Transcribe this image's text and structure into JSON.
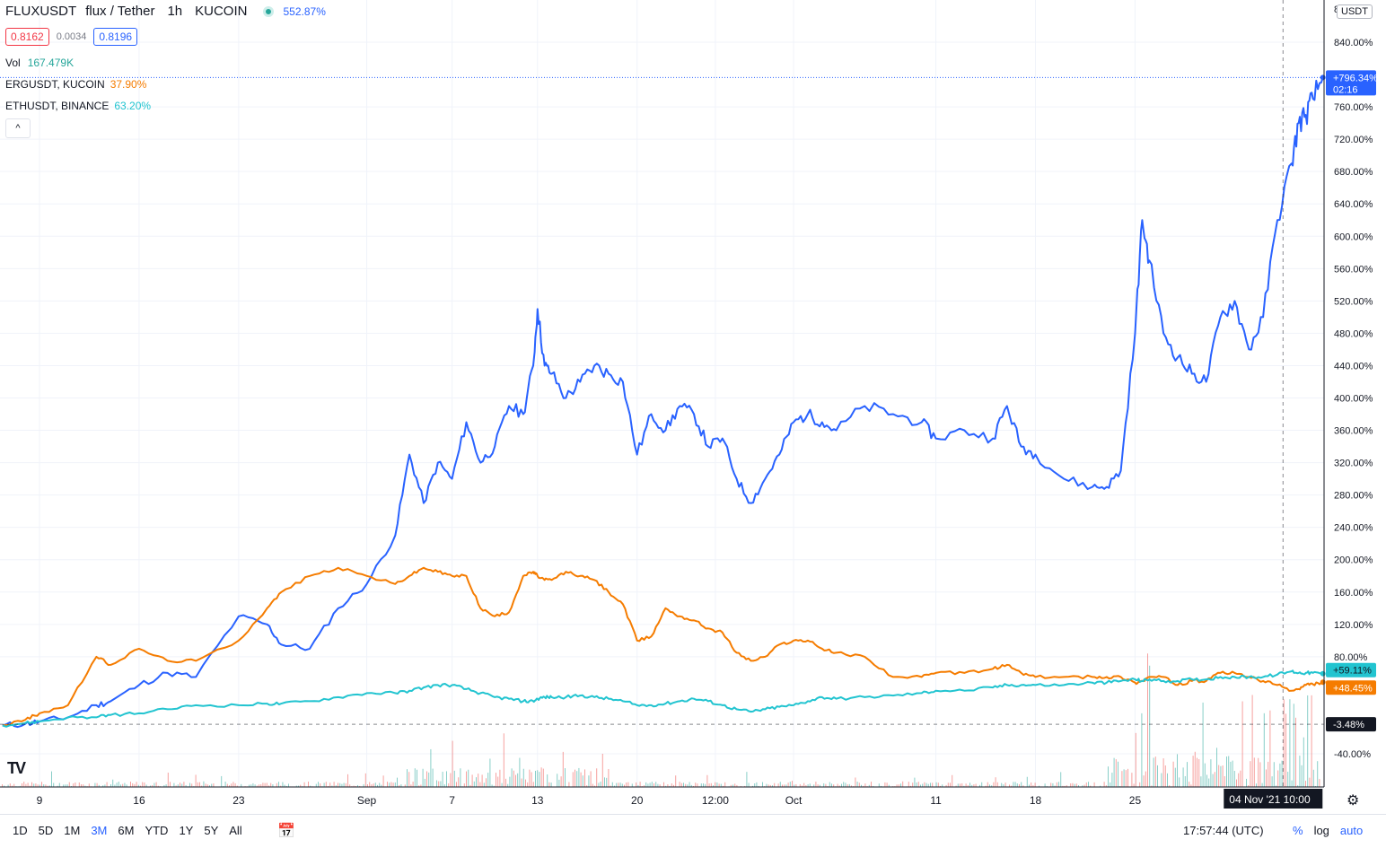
{
  "header": {
    "symbol": "FLUXUSDT",
    "description": "flux / Tether",
    "interval": "1h",
    "exchange": "KUCOIN",
    "change_pct": "552.87%",
    "bid": "0.8162",
    "spread": "0.0034",
    "ask": "0.8196",
    "vol_label": "Vol",
    "vol_value": "167.479K",
    "compare": [
      {
        "label": "ERGUSDT, KUCOIN",
        "value": "37.90%",
        "color": "#f57c00"
      },
      {
        "label": "ETHUSDT, BINANCE",
        "value": "63.20%",
        "color": "#22c4d0"
      }
    ],
    "collapse_glyph": "^"
  },
  "price_scale": {
    "unit": "USDT",
    "top_partial": "8",
    "badges": {
      "flux": {
        "value": "+796.34%",
        "sub": "02:16",
        "color": "#2962ff"
      },
      "eth": {
        "value": "+59.11%",
        "color": "#22c4d0"
      },
      "erg": {
        "value": "+48.45%",
        "color": "#f57c00"
      },
      "crosshair": {
        "value": "-3.48%",
        "color": "#131722"
      }
    }
  },
  "time_axis": {
    "crosshair_label": "04 Nov '21   10:00"
  },
  "bottom_bar": {
    "ranges": [
      "1D",
      "5D",
      "1M",
      "3M",
      "6M",
      "YTD",
      "1Y",
      "5Y",
      "All"
    ],
    "active_range": "3M",
    "calendar_icon": "calendar-icon",
    "clock": "17:57:44 (UTC)",
    "pct": "%",
    "log": "log",
    "auto": "auto"
  },
  "chart_data": {
    "type": "line",
    "title": "",
    "xlabel": "",
    "ylabel": "",
    "y_unit": "%",
    "ylim": [
      -60,
      860
    ],
    "y_ticks": [
      -40,
      80,
      120,
      160,
      200,
      240,
      280,
      320,
      360,
      400,
      440,
      480,
      520,
      560,
      600,
      640,
      680,
      720,
      760,
      840
    ],
    "x_ticks": [
      {
        "label": "9",
        "x": 0
      },
      {
        "label": "16",
        "x": 7
      },
      {
        "label": "23",
        "x": 14
      },
      {
        "label": "Sep",
        "x": 23
      },
      {
        "label": "7",
        "x": 29
      },
      {
        "label": "13",
        "x": 35
      },
      {
        "label": "20",
        "x": 42
      },
      {
        "label": "12:00",
        "x": 47.5
      },
      {
        "label": "Oct",
        "x": 53
      },
      {
        "label": "11",
        "x": 63
      },
      {
        "label": "18",
        "x": 70
      },
      {
        "label": "25",
        "x": 77
      },
      {
        "label": "04 Nov '21",
        "x": 87.4
      }
    ],
    "x_days": [
      -2.6,
      -1,
      0,
      2,
      4,
      5,
      7,
      9,
      11,
      14,
      16,
      17,
      19,
      21,
      23,
      25,
      26,
      27,
      28,
      29,
      30,
      31,
      32,
      33,
      34,
      34.7,
      35,
      35.5,
      36,
      37,
      38,
      39,
      40,
      41,
      42,
      43,
      44,
      45,
      46,
      47,
      48,
      49,
      50,
      51,
      52,
      53,
      54,
      55,
      56,
      58,
      60,
      62,
      63,
      65,
      67,
      68,
      69,
      70,
      72,
      74,
      75,
      76,
      77,
      77.5,
      78,
      79,
      80,
      81,
      82,
      83,
      84,
      85,
      86,
      87,
      88,
      88.5,
      89,
      89.5,
      90.2
    ],
    "series": [
      {
        "name": "FLUXUSDT",
        "color": "#2962ff",
        "values": [
          -5,
          -3,
          0,
          5,
          20,
          25,
          45,
          60,
          55,
          130,
          120,
          95,
          90,
          140,
          170,
          230,
          330,
          270,
          320,
          300,
          370,
          320,
          340,
          390,
          380,
          440,
          510,
          440,
          430,
          400,
          420,
          440,
          430,
          420,
          330,
          380,
          360,
          390,
          380,
          340,
          350,
          300,
          270,
          300,
          330,
          370,
          380,
          370,
          360,
          390,
          380,
          370,
          350,
          360,
          350,
          390,
          340,
          330,
          300,
          290,
          290,
          310,
          480,
          620,
          570,
          480,
          450,
          430,
          420,
          500,
          520,
          460,
          500,
          620,
          690,
          740,
          750,
          770,
          796.34
        ]
      },
      {
        "name": "ERGUSDT",
        "color": "#f57c00",
        "values": [
          -5,
          2,
          10,
          20,
          80,
          70,
          90,
          75,
          75,
          100,
          140,
          160,
          180,
          190,
          180,
          170,
          180,
          190,
          185,
          180,
          180,
          140,
          130,
          135,
          180,
          185,
          180,
          175,
          175,
          185,
          180,
          175,
          160,
          145,
          100,
          105,
          140,
          130,
          125,
          115,
          110,
          85,
          75,
          80,
          95,
          100,
          100,
          90,
          85,
          80,
          55,
          55,
          60,
          60,
          65,
          70,
          60,
          55,
          55,
          55,
          55,
          55,
          48,
          50,
          55,
          55,
          45,
          50,
          50,
          60,
          60,
          55,
          50,
          45,
          38,
          40,
          45,
          46,
          48.45
        ]
      },
      {
        "name": "ETHUSDT",
        "color": "#22c4d0",
        "values": [
          -5,
          -2,
          0,
          5,
          5,
          8,
          10,
          15,
          20,
          20,
          22,
          22,
          25,
          30,
          35,
          35,
          38,
          42,
          45,
          45,
          40,
          35,
          30,
          28,
          25,
          25,
          28,
          30,
          30,
          30,
          32,
          30,
          28,
          25,
          20,
          20,
          22,
          25,
          28,
          25,
          20,
          15,
          12,
          15,
          18,
          20,
          25,
          30,
          28,
          30,
          32,
          35,
          38,
          38,
          42,
          45,
          45,
          45,
          45,
          48,
          48,
          50,
          52,
          50,
          52,
          50,
          50,
          52,
          52,
          55,
          55,
          55,
          55,
          58,
          62,
          60,
          60,
          60,
          59.11
        ]
      }
    ],
    "volume": {
      "color_up": "#26a69a",
      "color_down": "#ef5350",
      "max_label_shown": "167.479K"
    },
    "grid": true,
    "legend": "top-left"
  }
}
